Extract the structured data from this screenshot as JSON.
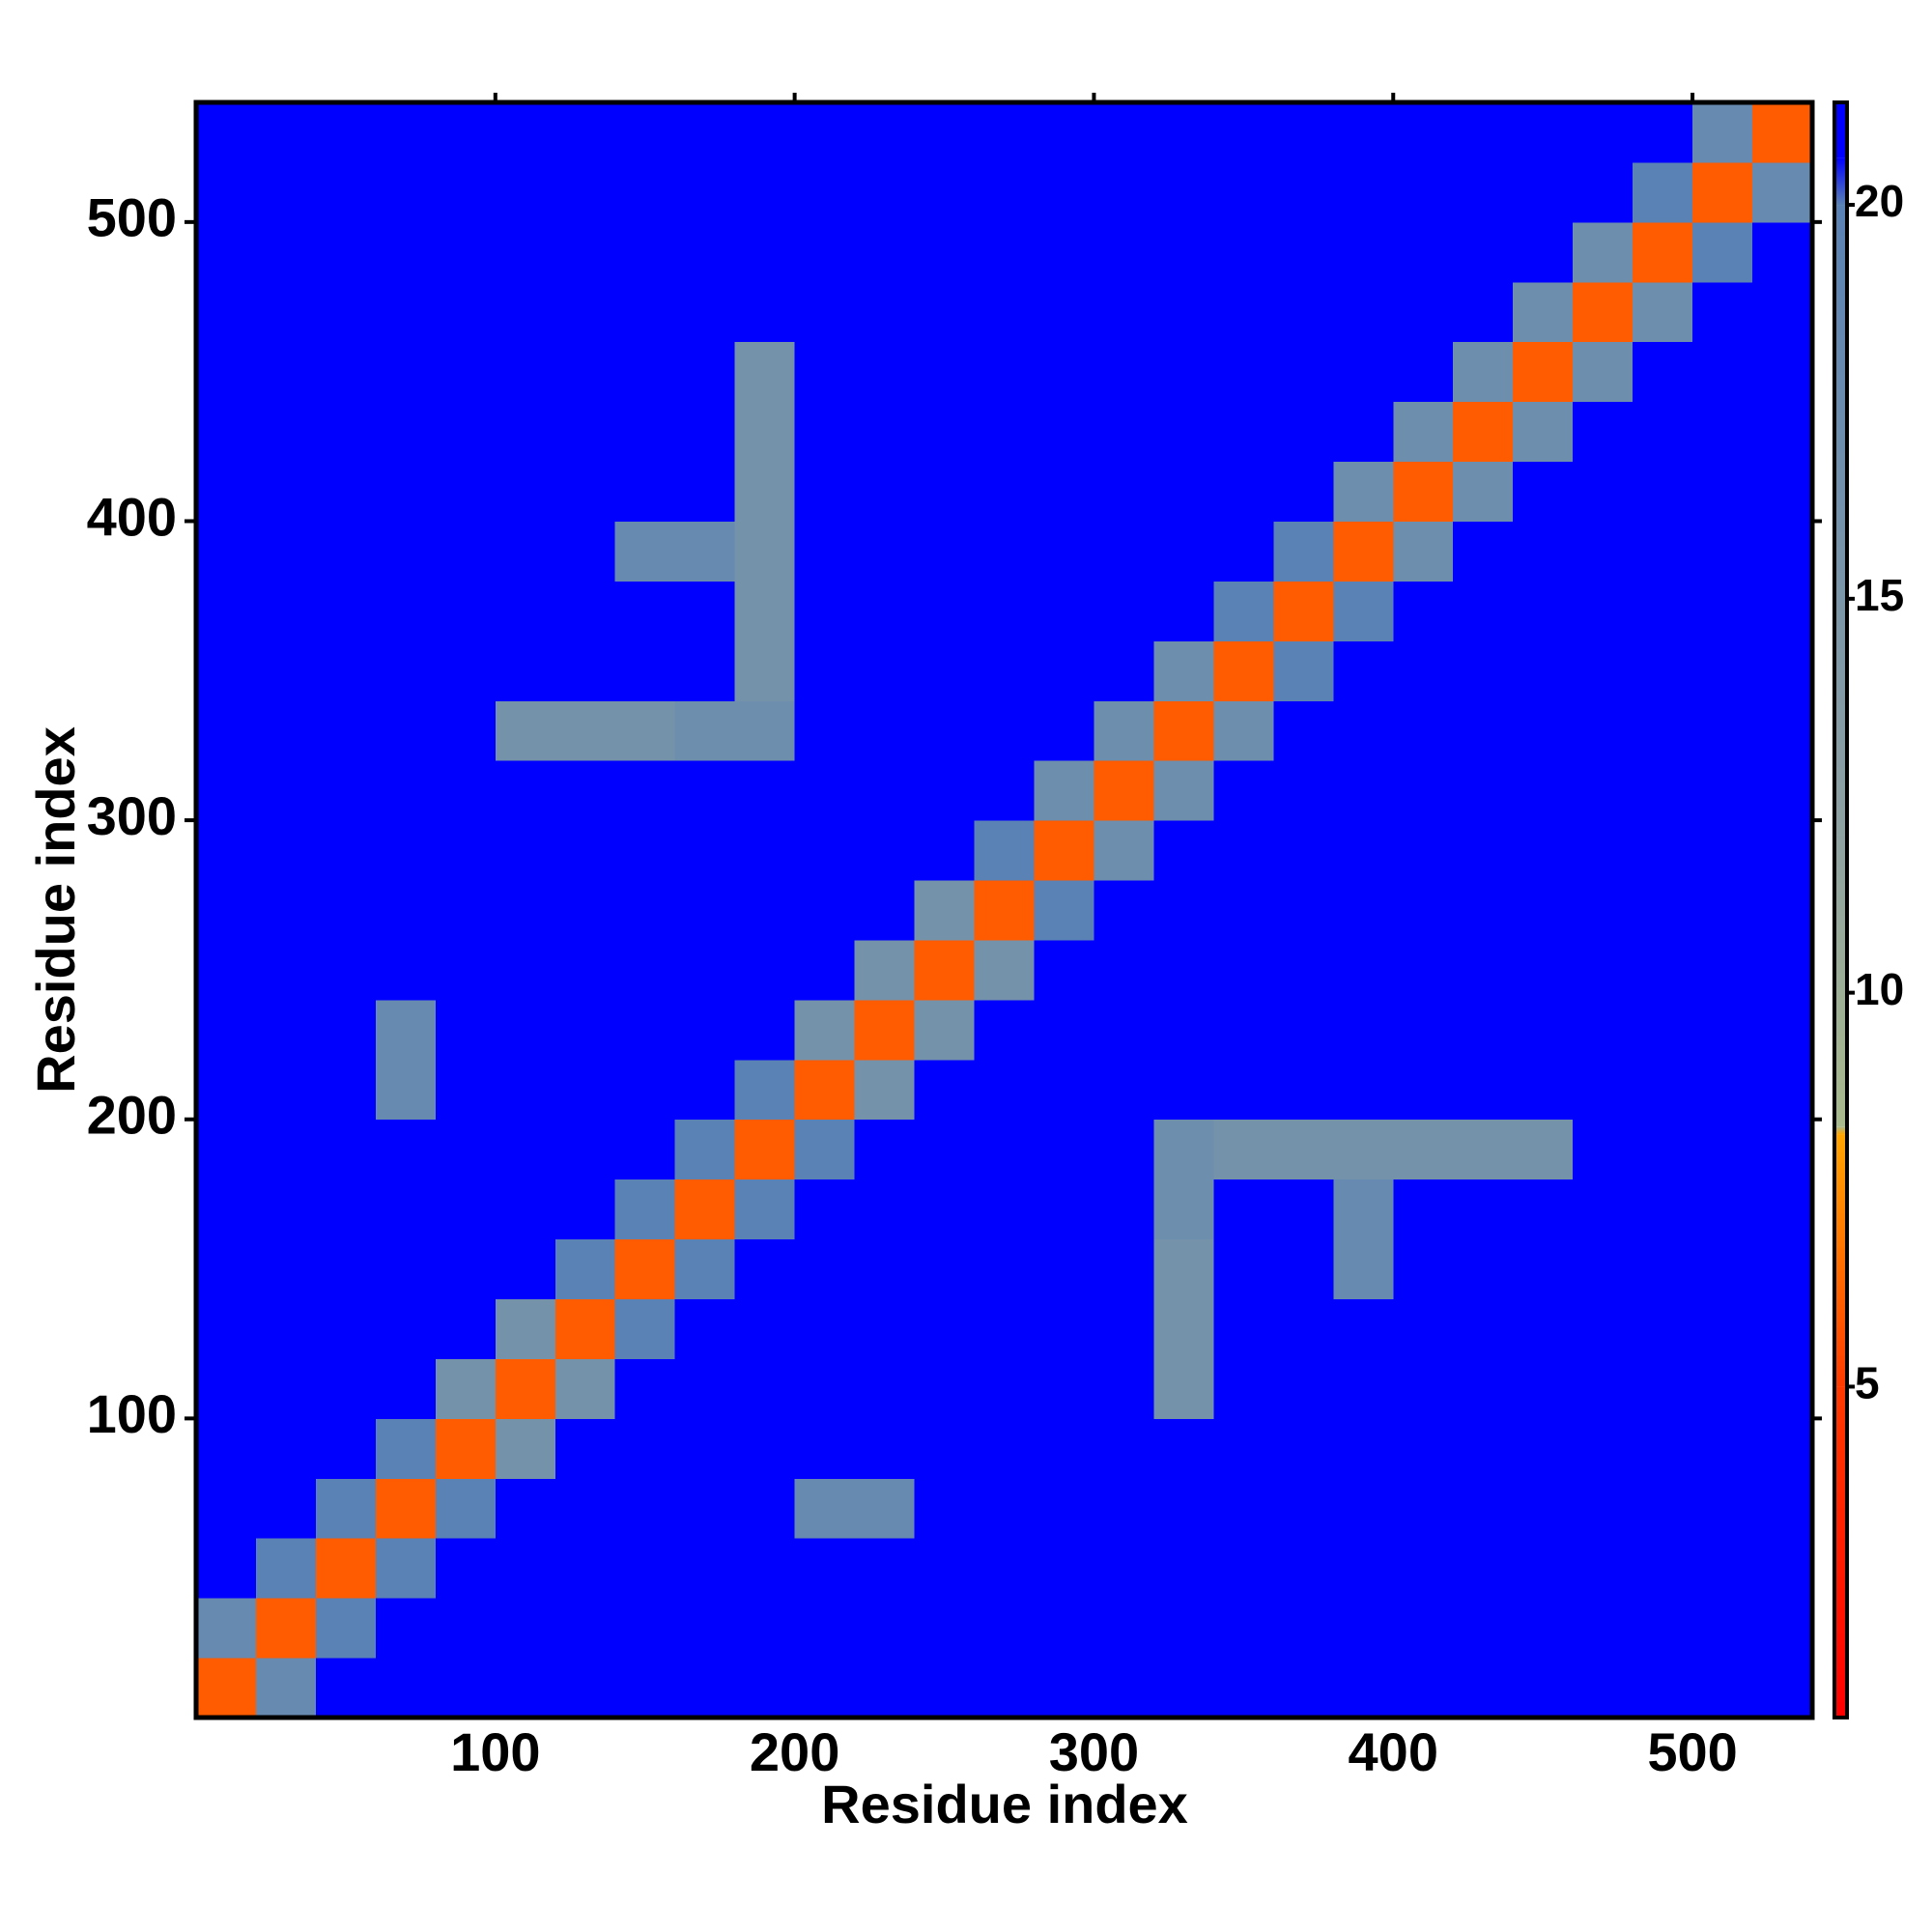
{
  "chart_data": {
    "type": "heatmap",
    "xlabel": "Residue index",
    "ylabel": "Residue index",
    "xlim": [
      0,
      540
    ],
    "ylim": [
      0,
      540
    ],
    "xticks": [
      100,
      200,
      300,
      400,
      500
    ],
    "yticks": [
      100,
      200,
      300,
      400,
      500
    ],
    "bin_edges": [
      0,
      20,
      40,
      60,
      80,
      100,
      120,
      140,
      160,
      180,
      200,
      220,
      240,
      260,
      280,
      300,
      320,
      340,
      360,
      380,
      400,
      420,
      440,
      460,
      480,
      500,
      520,
      540
    ],
    "clim": [
      0.8,
      21.3
    ],
    "cticks": [
      5,
      10,
      15,
      20
    ],
    "colorscale": [
      {
        "value": 0.8,
        "color": "#ff0000"
      },
      {
        "value": 5,
        "color": "#ff3a00"
      },
      {
        "value": 8.2,
        "color": "#ffa500"
      },
      {
        "value": 8.3,
        "color": "#a9ba8c"
      },
      {
        "value": 12,
        "color": "#8fa2a2"
      },
      {
        "value": 20,
        "color": "#5a82b4"
      },
      {
        "value": 20.6,
        "color": "#0000ff"
      },
      {
        "value": 21.3,
        "color": "#0000ff"
      }
    ],
    "z": [
      [
        6,
        18,
        21,
        21,
        21,
        21,
        21,
        21,
        21,
        21,
        21,
        21,
        21,
        21,
        21,
        21,
        21,
        21,
        21,
        21,
        21,
        21,
        21,
        21,
        21,
        21,
        21
      ],
      [
        18,
        6,
        20,
        21,
        21,
        21,
        21,
        21,
        21,
        21,
        21,
        21,
        21,
        21,
        21,
        21,
        21,
        21,
        21,
        21,
        21,
        21,
        21,
        21,
        21,
        21,
        21
      ],
      [
        21,
        20,
        6,
        20,
        21,
        21,
        21,
        21,
        21,
        21,
        21,
        21,
        21,
        21,
        21,
        21,
        21,
        21,
        21,
        21,
        21,
        21,
        21,
        21,
        21,
        21,
        21
      ],
      [
        21,
        21,
        20,
        6,
        20,
        21,
        21,
        21,
        21,
        21,
        18,
        18,
        21,
        21,
        21,
        21,
        21,
        21,
        21,
        21,
        21,
        21,
        21,
        21,
        21,
        21,
        21
      ],
      [
        21,
        21,
        21,
        20,
        6,
        16,
        21,
        21,
        21,
        21,
        21,
        21,
        21,
        21,
        21,
        21,
        21,
        21,
        21,
        21,
        21,
        21,
        21,
        21,
        21,
        21,
        21
      ],
      [
        21,
        21,
        21,
        21,
        16,
        6,
        16,
        21,
        21,
        21,
        21,
        21,
        21,
        21,
        21,
        21,
        16,
        21,
        21,
        21,
        21,
        21,
        21,
        21,
        21,
        21,
        21
      ],
      [
        21,
        21,
        21,
        21,
        21,
        16,
        6,
        20,
        21,
        21,
        21,
        21,
        21,
        21,
        21,
        21,
        16,
        21,
        21,
        21,
        21,
        21,
        21,
        21,
        21,
        21,
        21
      ],
      [
        21,
        21,
        21,
        21,
        21,
        21,
        20,
        6,
        20,
        21,
        21,
        21,
        21,
        21,
        21,
        21,
        16,
        21,
        21,
        18,
        21,
        21,
        21,
        21,
        21,
        21,
        21
      ],
      [
        21,
        21,
        21,
        21,
        21,
        21,
        21,
        20,
        6,
        20,
        21,
        21,
        21,
        21,
        21,
        21,
        17,
        21,
        21,
        18,
        21,
        21,
        21,
        21,
        21,
        21,
        21
      ],
      [
        21,
        21,
        21,
        21,
        21,
        21,
        21,
        21,
        20,
        6,
        20,
        21,
        21,
        21,
        21,
        21,
        17,
        16,
        16,
        16,
        16,
        16,
        16,
        21,
        21,
        21,
        21
      ],
      [
        21,
        21,
        21,
        18,
        21,
        21,
        21,
        21,
        21,
        20,
        6,
        16,
        21,
        21,
        21,
        21,
        21,
        21,
        21,
        21,
        21,
        21,
        21,
        21,
        21,
        21,
        21
      ],
      [
        21,
        21,
        21,
        18,
        21,
        21,
        21,
        21,
        21,
        21,
        16,
        6,
        16,
        21,
        21,
        21,
        21,
        21,
        21,
        21,
        21,
        21,
        21,
        21,
        21,
        21,
        21
      ],
      [
        21,
        21,
        21,
        21,
        21,
        21,
        21,
        21,
        21,
        21,
        21,
        16,
        6,
        16,
        21,
        21,
        21,
        21,
        21,
        21,
        21,
        21,
        21,
        21,
        21,
        21,
        21
      ],
      [
        21,
        21,
        21,
        21,
        21,
        21,
        21,
        21,
        21,
        21,
        21,
        21,
        16,
        6,
        20,
        21,
        21,
        21,
        21,
        21,
        21,
        21,
        21,
        21,
        21,
        21,
        21
      ],
      [
        21,
        21,
        21,
        21,
        21,
        21,
        21,
        21,
        21,
        21,
        21,
        21,
        21,
        20,
        6,
        17,
        21,
        21,
        21,
        21,
        21,
        21,
        21,
        21,
        21,
        21,
        21
      ],
      [
        21,
        21,
        21,
        21,
        21,
        21,
        21,
        21,
        21,
        21,
        21,
        21,
        21,
        21,
        17,
        6,
        17,
        21,
        21,
        21,
        21,
        21,
        21,
        21,
        21,
        21,
        21
      ],
      [
        21,
        21,
        21,
        21,
        21,
        16,
        16,
        16,
        17,
        17,
        21,
        21,
        21,
        21,
        21,
        17,
        6,
        17,
        21,
        21,
        21,
        21,
        21,
        21,
        21,
        21,
        21
      ],
      [
        21,
        21,
        21,
        21,
        21,
        21,
        21,
        21,
        21,
        16,
        21,
        21,
        21,
        21,
        21,
        21,
        17,
        6,
        20,
        21,
        21,
        21,
        21,
        21,
        21,
        21,
        21
      ],
      [
        21,
        21,
        21,
        21,
        21,
        21,
        21,
        21,
        21,
        16,
        21,
        21,
        21,
        21,
        21,
        21,
        21,
        20,
        6,
        20,
        21,
        21,
        21,
        21,
        21,
        21,
        21
      ],
      [
        21,
        21,
        21,
        21,
        21,
        21,
        21,
        18,
        18,
        16,
        21,
        21,
        21,
        21,
        21,
        21,
        21,
        21,
        20,
        6,
        17,
        21,
        21,
        21,
        21,
        21,
        21
      ],
      [
        21,
        21,
        21,
        21,
        21,
        21,
        21,
        21,
        21,
        16,
        21,
        21,
        21,
        21,
        21,
        21,
        21,
        21,
        21,
        17,
        6,
        17,
        21,
        21,
        21,
        21,
        21
      ],
      [
        21,
        21,
        21,
        21,
        21,
        21,
        21,
        21,
        21,
        16,
        21,
        21,
        21,
        21,
        21,
        21,
        21,
        21,
        21,
        21,
        17,
        6,
        17,
        21,
        21,
        21,
        21
      ],
      [
        21,
        21,
        21,
        21,
        21,
        21,
        21,
        21,
        21,
        16,
        21,
        21,
        21,
        21,
        21,
        21,
        21,
        21,
        21,
        21,
        21,
        17,
        6,
        17,
        21,
        21,
        21
      ],
      [
        21,
        21,
        21,
        21,
        21,
        21,
        21,
        21,
        21,
        21,
        21,
        21,
        21,
        21,
        21,
        21,
        21,
        21,
        21,
        21,
        21,
        21,
        17,
        6,
        17,
        21,
        21
      ],
      [
        21,
        21,
        21,
        21,
        21,
        21,
        21,
        21,
        21,
        21,
        21,
        21,
        21,
        21,
        21,
        21,
        21,
        21,
        21,
        21,
        21,
        21,
        21,
        17,
        6,
        20,
        21
      ],
      [
        21,
        21,
        21,
        21,
        21,
        21,
        21,
        21,
        21,
        21,
        21,
        21,
        21,
        21,
        21,
        21,
        21,
        21,
        21,
        21,
        21,
        21,
        21,
        21,
        20,
        6,
        18
      ],
      [
        21,
        21,
        21,
        21,
        21,
        21,
        21,
        21,
        21,
        21,
        21,
        21,
        21,
        21,
        21,
        21,
        21,
        21,
        21,
        21,
        21,
        21,
        21,
        21,
        21,
        18,
        6
      ]
    ]
  }
}
